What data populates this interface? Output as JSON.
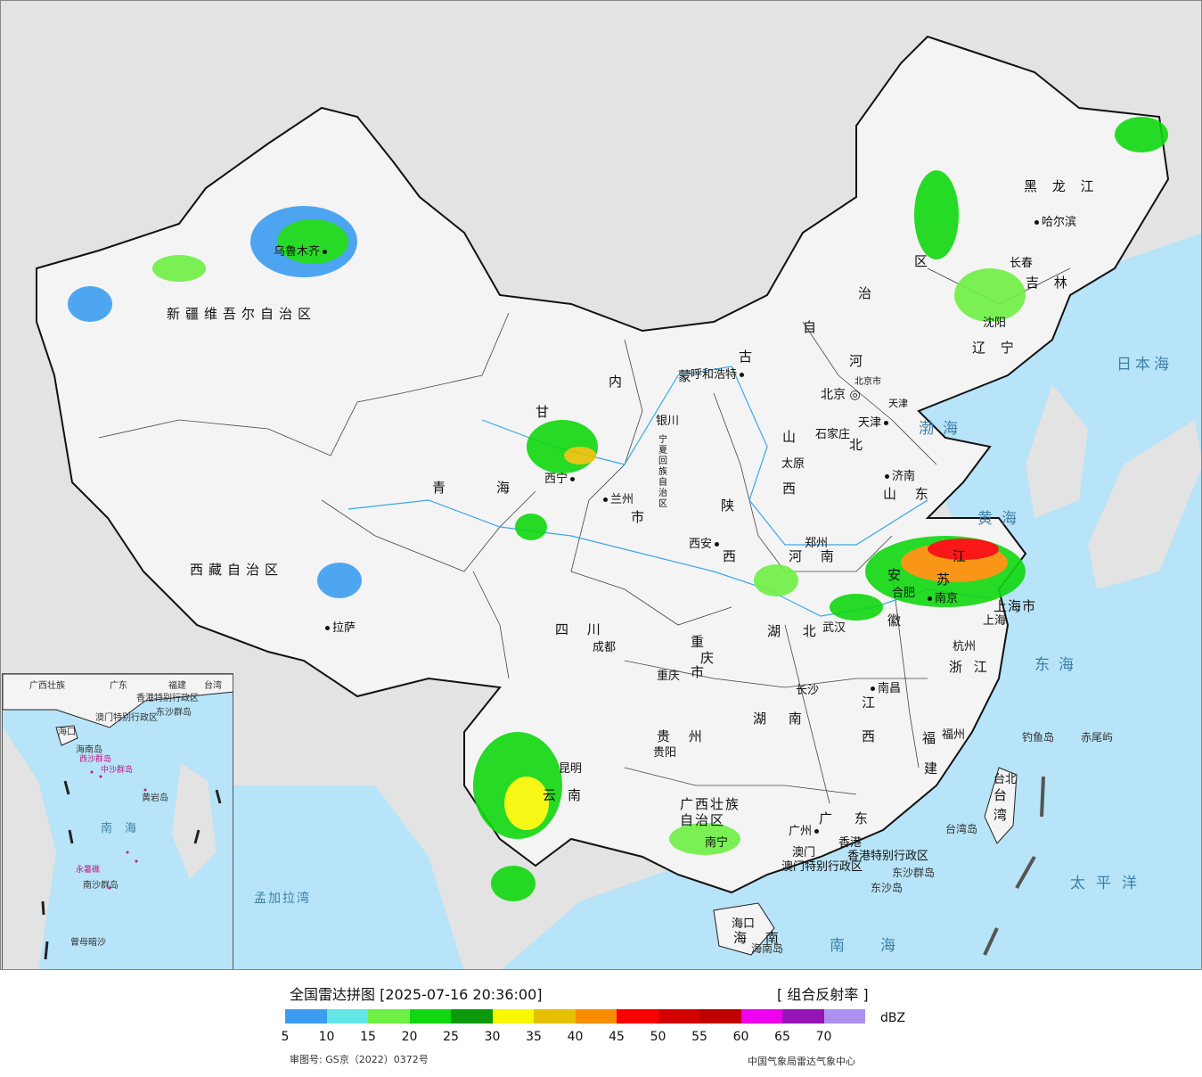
{
  "legend": {
    "title": "全国雷达拼图 [2025-07-16 20:36:00]",
    "product": "[ 组合反射率 ]",
    "unit": "dBZ",
    "colors": [
      "#3c9cf0",
      "#64e6e6",
      "#6ef044",
      "#10d810",
      "#0c9a0c",
      "#f8f800",
      "#e4c000",
      "#fa8c00",
      "#fa0000",
      "#d40000",
      "#c00000",
      "#f000f0",
      "#9414b4",
      "#ad90f0"
    ],
    "ticks": [
      "5",
      "10",
      "15",
      "20",
      "25",
      "30",
      "35",
      "40",
      "45",
      "50",
      "55",
      "60",
      "65",
      "70"
    ],
    "approval": "审图号: GS京（2022）0372号",
    "agency": "中国气象局雷达气象中心"
  },
  "provinces": {
    "xinjiang": "新疆维吾尔自治区",
    "tibet": "西藏自治区",
    "qinghai": [
      "青",
      "海"
    ],
    "gansu": "甘",
    "neimenggu": [
      "内",
      "蒙",
      "古",
      "自",
      "治",
      "区"
    ],
    "heilongjiang": "黑 龙 江",
    "jilin": "吉 林",
    "liaoning": "辽 宁",
    "hebei": [
      "河",
      "北"
    ],
    "shanxi": [
      "山",
      "西"
    ],
    "shandong": "山 东",
    "shaanxi": [
      "陕",
      "西"
    ],
    "henan": "河 南",
    "sichuan": "四 川",
    "chongqing": [
      "重",
      "庆",
      "市"
    ],
    "hubei": "湖 北",
    "anhui": [
      "安",
      "徽"
    ],
    "jiangsu": [
      "江",
      "苏"
    ],
    "zhejiang": "浙 江",
    "jiangxi": [
      "江",
      "西"
    ],
    "hunan": "湖 南",
    "guizhou": "贵 州",
    "yunnan": [
      "云",
      "南"
    ],
    "guangxi": [
      "广西壮族",
      "自治区"
    ],
    "guangdong": "广 东",
    "fujian": [
      "福",
      "建"
    ],
    "taiwan": [
      "台",
      "湾"
    ],
    "hainan": "海 南",
    "ningxia": "宁夏回族自治区",
    "gansu_shi": "市",
    "shanghai": "上海市",
    "beijing_shi": "北京市",
    "tianjin_shi": "天津",
    "hk_sar": "香港特别行政区",
    "macau_sar": "澳门特别行政区"
  },
  "cities": {
    "urumqi": "乌鲁木齐",
    "lhasa": "拉萨",
    "xining": "西宁",
    "lanzhou": "兰州",
    "yinchuan": "银川",
    "hohhot": "呼和浩特",
    "beijing": "北京",
    "tianjin": "天津",
    "shijiazhuang": "石家庄",
    "taiyuan": "太原",
    "jinan": "济南",
    "zhengzhou": "郑州",
    "xian": "西安",
    "chengdu": "成都",
    "chongqing": "重庆",
    "wuhan": "武汉",
    "hefei": "合肥",
    "nanjing": "南京",
    "shanghai": "上海",
    "hangzhou": "杭州",
    "nanchang": "南昌",
    "changsha": "长沙",
    "guiyang": "贵阳",
    "kunming": "昆明",
    "nanning": "南宁",
    "guangzhou": "广州",
    "hongkong": "香港",
    "macau": "澳门",
    "fuzhou": "福州",
    "taipei": "台北",
    "haikou": "海口",
    "harbin": "哈尔滨",
    "changchun": "长春",
    "shenyang": "沈阳"
  },
  "seas": {
    "bohai": "渤海",
    "huanghai": "黄海",
    "donghai": "东海",
    "nanhai": "南海",
    "taipingyang": "太平洋",
    "ribenhai": "日本海",
    "mengjialawan": "孟加拉湾",
    "taiwan_island": "台湾岛",
    "hainan_island": "海南岛",
    "diaoyudao": "钓鱼岛",
    "chiweiyu": "赤尾屿",
    "dongsha_islands": "东沙群岛",
    "dongsha_island": "东沙岛"
  },
  "inset": {
    "nanhai": "南海",
    "haikou": "海口",
    "hainan": "海南岛",
    "xisha": "西沙群岛",
    "zhongsha": "中沙群岛",
    "huangyan": "黄岩岛",
    "yongshu": "永暑礁",
    "nansha": "南沙群岛",
    "zengmu": "曾母暗沙",
    "guangxi": "广西壮族",
    "guangdong": "广东",
    "fujian": "福建",
    "taiwan": "台湾",
    "hk": "香港特别行政区",
    "macau": "澳门特别行政区",
    "dongsha": "东沙群岛"
  }
}
